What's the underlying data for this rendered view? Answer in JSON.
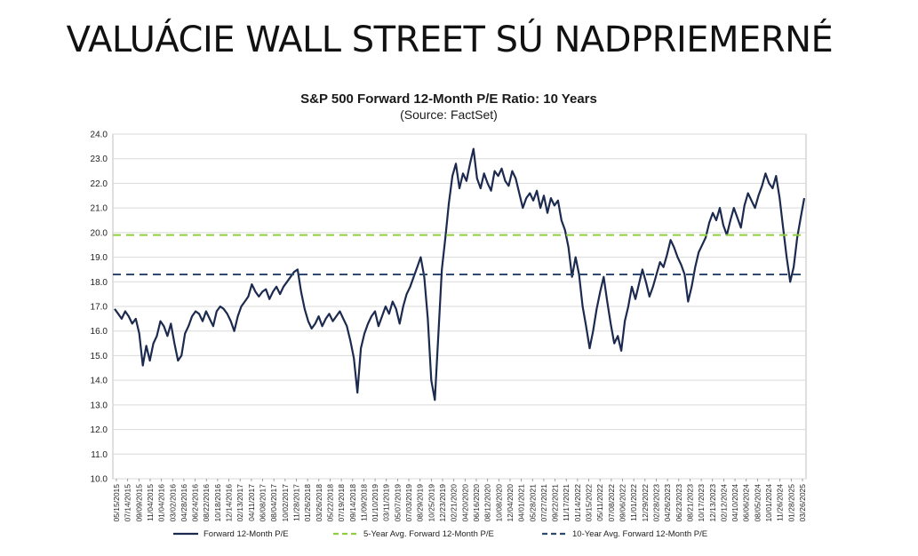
{
  "headline": "VALUÁCIE WALL STREET SÚ NADPRIEMERNÉ",
  "chart_data": {
    "type": "line",
    "title": "S&P 500 Forward 12-Month P/E Ratio: 10 Years",
    "subtitle": "(Source: FactSet)",
    "ylim": [
      10,
      24
    ],
    "yticks": [
      "10.0",
      "11.0",
      "12.0",
      "13.0",
      "14.0",
      "15.0",
      "16.0",
      "17.0",
      "18.0",
      "19.0",
      "20.0",
      "21.0",
      "22.0",
      "23.0",
      "24.0"
    ],
    "xticks": [
      "05/15/2015",
      "07/14/2015",
      "09/09/2015",
      "11/04/2015",
      "01/04/2016",
      "03/02/2016",
      "04/28/2016",
      "06/24/2016",
      "08/22/2016",
      "10/18/2016",
      "12/14/2016",
      "02/13/2017",
      "04/11/2017",
      "06/08/2017",
      "08/04/2017",
      "10/02/2017",
      "11/28/2017",
      "01/26/2018",
      "03/26/2018",
      "05/22/2018",
      "07/19/2018",
      "09/14/2018",
      "11/09/2018",
      "01/10/2019",
      "03/11/2019",
      "05/07/2019",
      "07/03/2019",
      "08/29/2019",
      "10/25/2019",
      "12/23/2019",
      "02/21/2020",
      "04/20/2020",
      "06/16/2020",
      "08/12/2020",
      "10/08/2020",
      "12/04/2020",
      "04/01/2021",
      "05/28/2021",
      "07/27/2021",
      "09/22/2021",
      "11/17/2021",
      "01/14/2022",
      "03/15/2022",
      "05/11/2022",
      "07/08/2022",
      "09/06/2022",
      "11/01/2022",
      "12/29/2022",
      "02/28/2023",
      "04/26/2023",
      "06/23/2023",
      "08/21/2023",
      "10/17/2023",
      "12/13/2023",
      "02/12/2024",
      "04/10/2024",
      "06/06/2024",
      "08/05/2024",
      "10/01/2024",
      "11/26/2024",
      "01/28/2025",
      "03/26/2025"
    ],
    "series": [
      {
        "name": "Forward 12-Month P/E",
        "color": "#1c2a4f",
        "style": "solid",
        "values": [
          16.9,
          16.7,
          16.5,
          16.8,
          16.6,
          16.3,
          16.5,
          15.9,
          14.6,
          15.4,
          14.8,
          15.5,
          15.8,
          16.4,
          16.2,
          15.8,
          16.3,
          15.5,
          14.8,
          15.0,
          15.9,
          16.2,
          16.6,
          16.8,
          16.7,
          16.4,
          16.8,
          16.5,
          16.2,
          16.8,
          17.0,
          16.9,
          16.7,
          16.4,
          16.0,
          16.6,
          17.0,
          17.2,
          17.4,
          17.9,
          17.6,
          17.4,
          17.6,
          17.7,
          17.3,
          17.6,
          17.8,
          17.5,
          17.8,
          18.0,
          18.2,
          18.4,
          18.5,
          17.6,
          16.9,
          16.4,
          16.1,
          16.3,
          16.6,
          16.2,
          16.5,
          16.7,
          16.4,
          16.6,
          16.8,
          16.5,
          16.2,
          15.6,
          14.9,
          13.5,
          15.3,
          15.9,
          16.3,
          16.6,
          16.8,
          16.2,
          16.6,
          17.0,
          16.7,
          17.2,
          16.9,
          16.3,
          17.0,
          17.5,
          17.8,
          18.2,
          18.6,
          19.0,
          18.2,
          16.5,
          14.0,
          13.2,
          15.8,
          18.5,
          19.8,
          21.2,
          22.3,
          22.8,
          21.8,
          22.4,
          22.1,
          22.8,
          23.4,
          22.2,
          21.8,
          22.4,
          22.0,
          21.7,
          22.5,
          22.3,
          22.6,
          22.1,
          21.9,
          22.5,
          22.2,
          21.6,
          21.0,
          21.4,
          21.6,
          21.3,
          21.7,
          21.0,
          21.5,
          20.8,
          21.4,
          21.1,
          21.3,
          20.5,
          20.1,
          19.4,
          18.2,
          19.0,
          18.3,
          17.0,
          16.2,
          15.3,
          16.0,
          16.9,
          17.6,
          18.2,
          17.2,
          16.3,
          15.5,
          15.8,
          15.2,
          16.4,
          17.0,
          17.8,
          17.3,
          17.9,
          18.5,
          18.0,
          17.4,
          17.8,
          18.3,
          18.8,
          18.6,
          19.1,
          19.7,
          19.4,
          19.0,
          18.7,
          18.3,
          17.2,
          17.8,
          18.6,
          19.2,
          19.5,
          19.8,
          20.4,
          20.8,
          20.5,
          21.0,
          20.3,
          19.9,
          20.5,
          21.0,
          20.6,
          20.2,
          21.1,
          21.6,
          21.3,
          21.0,
          21.5,
          21.9,
          22.4,
          22.0,
          21.8,
          22.3,
          21.4,
          20.2,
          19.0,
          18.0,
          18.6,
          19.8,
          20.6,
          21.4
        ]
      },
      {
        "name": "5-Year Avg. Forward 12-Month P/E",
        "color": "#8fcf3c",
        "style": "dashed",
        "constant": 19.9
      },
      {
        "name": "10-Year Avg. Forward 12-Month P/E",
        "color": "#2e4a6e",
        "style": "dashed",
        "constant": 18.3
      }
    ],
    "grid": true,
    "legend": "bottom"
  }
}
